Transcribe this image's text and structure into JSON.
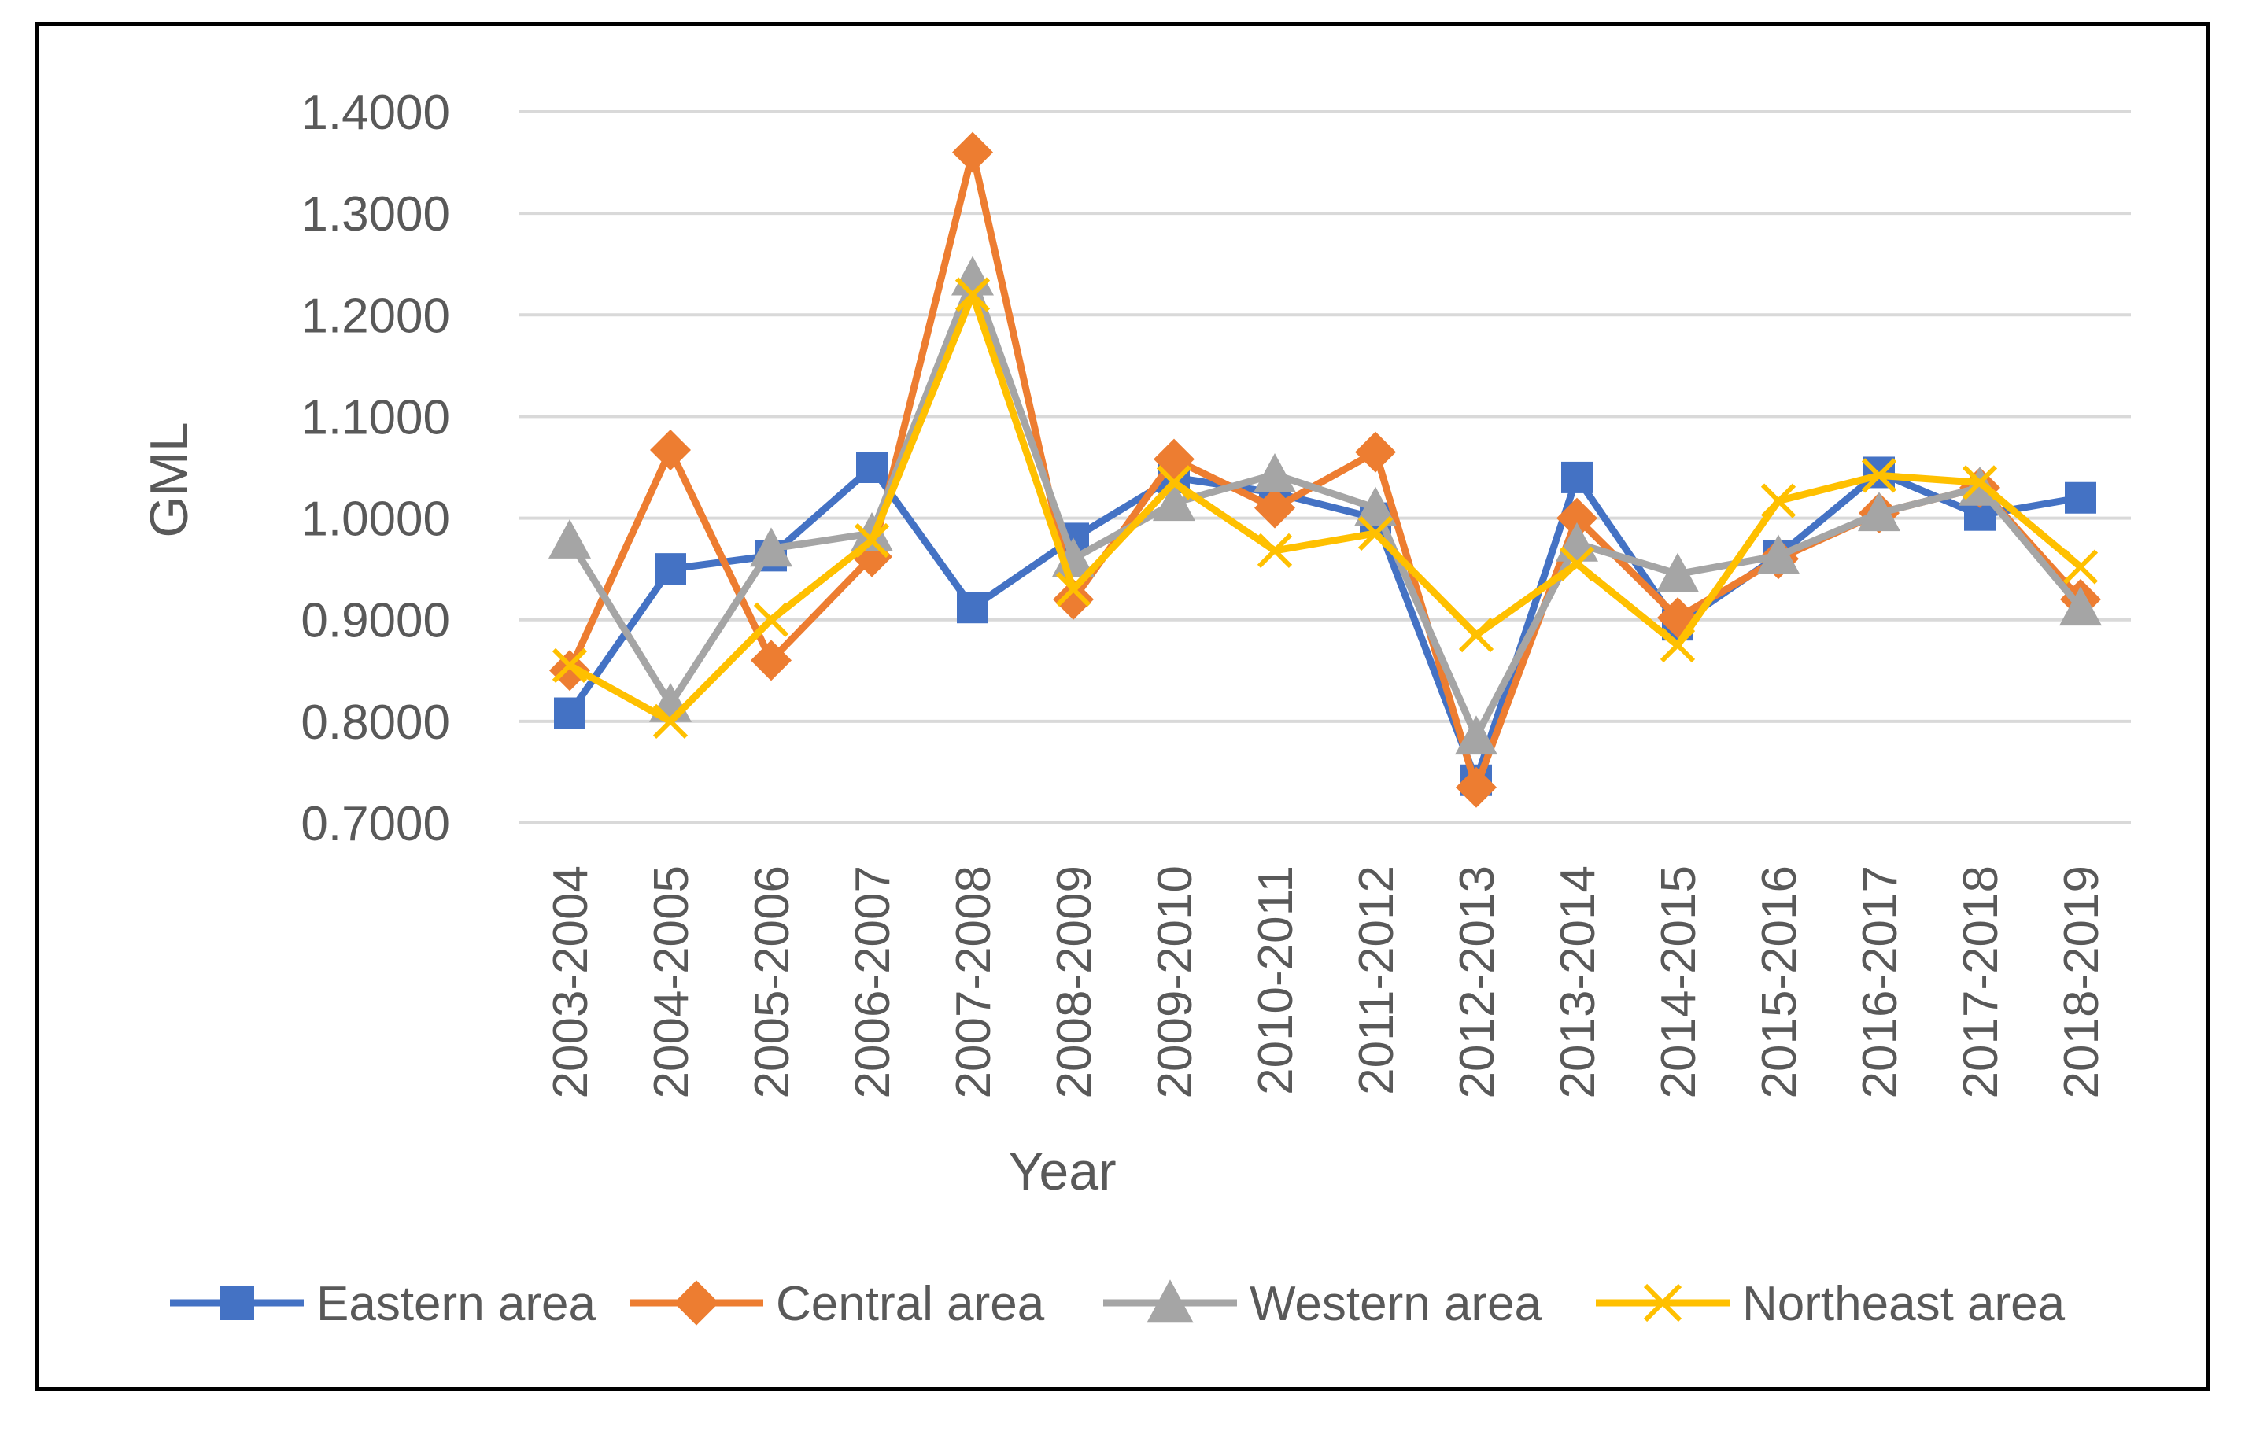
{
  "chart_data": {
    "type": "line",
    "title": "",
    "xlabel": "Year",
    "ylabel": "GML",
    "ylim": [
      0.7,
      1.4
    ],
    "yticks": [
      "0.7000",
      "0.8000",
      "0.9000",
      "1.0000",
      "1.1000",
      "1.2000",
      "1.3000",
      "1.4000"
    ],
    "grid": true,
    "legend_position": "bottom",
    "categories": [
      "2003-2004",
      "2004-2005",
      "2005-2006",
      "2006-2007",
      "2007-2008",
      "2008-2009",
      "2009-2010",
      "2010-2011",
      "2011-2012",
      "2012-2013",
      "2013-2014",
      "2014-2015",
      "2015-2016",
      "2016-2017",
      "2017-2018",
      "2018-2019"
    ],
    "series": [
      {
        "name": "Eastern area",
        "color": "#4472C4",
        "marker": "square",
        "values": [
          0.808,
          0.95,
          0.963,
          1.05,
          0.912,
          0.98,
          1.04,
          1.025,
          1.0,
          0.742,
          1.04,
          0.895,
          0.963,
          1.045,
          1.003,
          1.02
        ]
      },
      {
        "name": "Central area",
        "color": "#ED7D31",
        "marker": "diamond",
        "values": [
          0.85,
          1.067,
          0.86,
          0.962,
          1.36,
          0.92,
          1.058,
          1.01,
          1.065,
          0.735,
          1.0,
          0.902,
          0.96,
          1.005,
          1.03,
          0.92
        ]
      },
      {
        "name": "Western area",
        "color": "#A5A5A5",
        "marker": "triangle",
        "values": [
          0.978,
          0.817,
          0.97,
          0.985,
          1.237,
          0.96,
          1.015,
          1.043,
          1.01,
          0.785,
          0.975,
          0.945,
          0.963,
          1.005,
          1.03,
          0.912
        ]
      },
      {
        "name": "Northeast area",
        "color": "#FFC000",
        "marker": "x",
        "values": [
          0.855,
          0.8,
          0.9,
          0.978,
          1.22,
          0.93,
          1.035,
          0.968,
          0.985,
          0.885,
          0.955,
          0.875,
          1.017,
          1.042,
          1.035,
          0.952
        ]
      }
    ]
  }
}
